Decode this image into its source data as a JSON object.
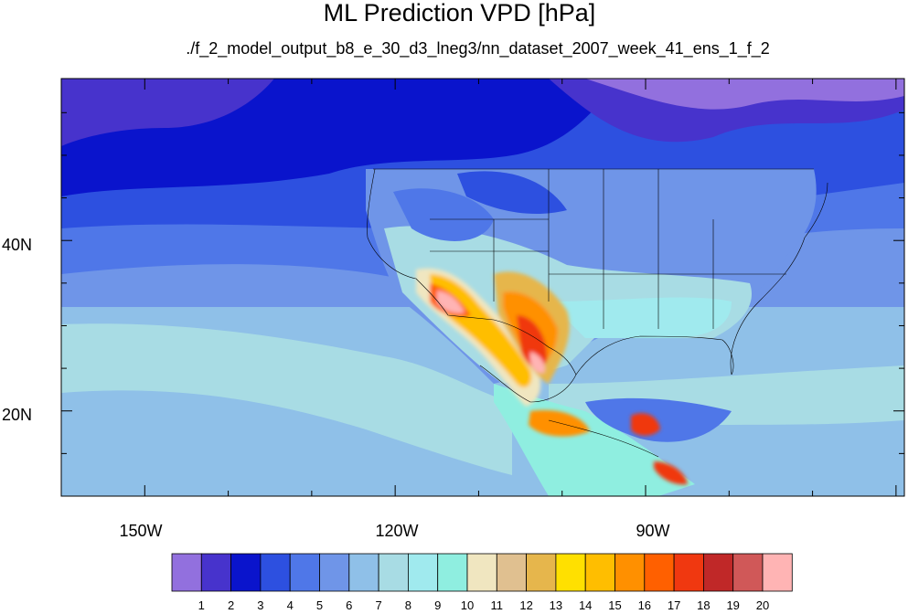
{
  "title": "ML Prediction VPD [hPa]",
  "subtitle": "./f_2_model_output_b8_e_30_d3_lneg3/nn_dataset_2007_week_41_ens_1_f_2",
  "axes": {
    "lat_ticks": [
      {
        "value": 40,
        "label": "40N"
      },
      {
        "value": 20,
        "label": "20N"
      }
    ],
    "lon_ticks": [
      {
        "value": -150,
        "label": "150W"
      },
      {
        "value": -120,
        "label": "120W"
      },
      {
        "value": -90,
        "label": "90W"
      }
    ],
    "lon_range": [
      -160,
      -59
    ],
    "lat_range": [
      10,
      59
    ]
  },
  "colorbar": {
    "colors": [
      "#9270de",
      "#4733cc",
      "#0a14cc",
      "#2d50e0",
      "#4f77e8",
      "#6f95e8",
      "#8fc0e8",
      "#a8dce4",
      "#a0eaee",
      "#8feee0",
      "#f0e6c0",
      "#e0c090",
      "#e6b64c",
      "#ffe000",
      "#ffbe00",
      "#ff9000",
      "#ff6000",
      "#f03810",
      "#c02828",
      "#d05858",
      "#ffb4b4"
    ],
    "labels": [
      "1",
      "2",
      "3",
      "4",
      "5",
      "6",
      "7",
      "8",
      "9",
      "10",
      "11",
      "12",
      "13",
      "14",
      "15",
      "16",
      "17",
      "18",
      "19",
      "20"
    ]
  }
}
